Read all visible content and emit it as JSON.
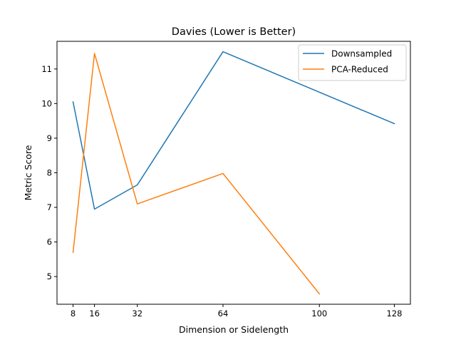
{
  "chart_data": {
    "type": "line",
    "title": "Davies (Lower is Better)",
    "xlabel": "Dimension or Sidelength",
    "ylabel": "Metric Score",
    "xlim": [
      2,
      134
    ],
    "ylim": [
      4.2,
      11.8
    ],
    "xticks": [
      8,
      16,
      32,
      64,
      100,
      128
    ],
    "yticks": [
      5,
      6,
      7,
      8,
      9,
      10,
      11
    ],
    "grid": false,
    "legend_position": "top-right",
    "series": [
      {
        "name": "Downsampled",
        "color": "#1f77b4",
        "x": [
          8,
          16,
          32,
          64,
          128
        ],
        "values": [
          10.05,
          6.95,
          7.65,
          11.5,
          9.42
        ]
      },
      {
        "name": "PCA-Reduced",
        "color": "#ff7f0e",
        "x": [
          8,
          16,
          32,
          64,
          100
        ],
        "values": [
          5.7,
          11.45,
          7.1,
          7.98,
          4.5
        ]
      }
    ]
  }
}
